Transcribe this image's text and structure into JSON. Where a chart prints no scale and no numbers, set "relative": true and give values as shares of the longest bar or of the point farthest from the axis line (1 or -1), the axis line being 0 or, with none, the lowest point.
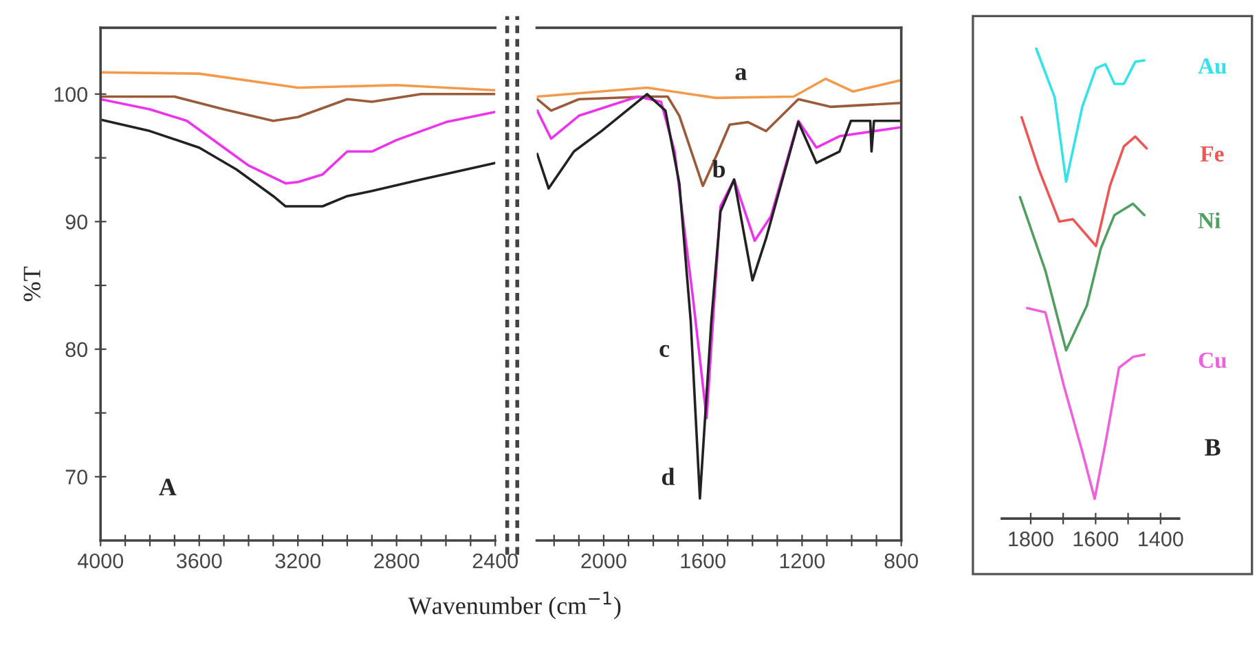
{
  "chart_data": [
    {
      "type": "line",
      "ylabel": "%T",
      "xlabel": "Wavenumber (cm$^{−1}$)",
      "xlim": [
        4000,
        2400
      ],
      "ylim": [
        65,
        105.2
      ],
      "xticks": [
        4000,
        {
          "value": 3900,
          "label": null
        },
        {
          "value": 3800,
          "label": null
        },
        {
          "value": 3700,
          "label": null
        },
        3600,
        {
          "value": 3500,
          "label": null
        },
        {
          "value": 3400,
          "label": null
        },
        {
          "value": 3300,
          "label": null
        },
        3200,
        {
          "value": 3100,
          "label": null
        },
        {
          "value": 3000,
          "label": null
        },
        {
          "value": 2900,
          "label": null
        },
        2800,
        {
          "value": 2700,
          "label": null
        },
        {
          "value": 2600,
          "label": null
        },
        {
          "value": 2500,
          "label": null
        },
        2400
      ],
      "yticks": [
        70,
        {
          "value": 75,
          "label": null
        },
        80,
        {
          "value": 85,
          "label": null
        },
        90,
        {
          "value": 95,
          "label": null
        },
        100
      ],
      "grid": false,
      "legend": false,
      "series": [
        {
          "color": "#f39a4c",
          "x": [
            4000,
            3600,
            3200,
            2800,
            2400
          ],
          "values": [
            101.7,
            101.6,
            100.5,
            100.7,
            100.3
          ]
        },
        {
          "color": "#9b5a3a",
          "x": [
            4000,
            3700,
            3500,
            3300,
            3200,
            3000,
            2900,
            2700,
            2400
          ],
          "values": [
            99.8,
            99.8,
            98.8,
            97.9,
            98.2,
            99.6,
            99.4,
            100,
            100
          ]
        },
        {
          "color": "#ee33ee",
          "x": [
            4000,
            3800,
            3650,
            3500,
            3400,
            3250,
            3200,
            3100,
            3000,
            2900,
            2800,
            2600,
            2400
          ],
          "values": [
            99.6,
            98.8,
            97.9,
            95.8,
            94.4,
            93.0,
            93.1,
            93.7,
            95.5,
            95.5,
            96.4,
            97.8,
            98.6
          ]
        },
        {
          "color": "#222222",
          "x": [
            4000,
            3800,
            3600,
            3450,
            3300,
            3250,
            3100,
            3000,
            2900,
            2700,
            2400
          ],
          "values": [
            98.0,
            97.1,
            95.8,
            94.1,
            92.0,
            91.2,
            91.2,
            92.0,
            92.4,
            93.3,
            94.6
          ]
        }
      ],
      "annotations": [
        "A"
      ]
    },
    {
      "type": "line",
      "xlim": [
        2270,
        800
      ],
      "ylim": [
        65,
        105.2
      ],
      "tick_labels": "x",
      "xticks": [
        {
          "value": 2200,
          "label": null
        },
        {
          "value": 2100,
          "label": null
        },
        2000,
        {
          "value": 1900,
          "label": null
        },
        {
          "value": 1800,
          "label": null
        },
        {
          "value": 1700,
          "label": null
        },
        1600,
        {
          "value": 1500,
          "label": null
        },
        {
          "value": 1400,
          "label": null
        },
        {
          "value": 1300,
          "label": null
        },
        1200,
        {
          "value": 1100,
          "label": null
        },
        {
          "value": 1000,
          "label": null
        },
        {
          "value": 900,
          "label": null
        },
        800
      ],
      "grid": false,
      "legend": false,
      "series": [
        {
          "color": "#f39a4c",
          "x": [
            2268,
            1825,
            1548,
            1234,
            1105,
            994,
            800
          ],
          "values": [
            99.8,
            100.5,
            99.7,
            99.8,
            101.2,
            100.2,
            101.1
          ]
        },
        {
          "color": "#9b5a3a",
          "x": [
            2268,
            2212,
            2100,
            1825,
            1742,
            1695,
            1600,
            1538,
            1492,
            1418,
            1345,
            1215,
            1086,
            800
          ],
          "values": [
            99.6,
            98.7,
            99.6,
            99.8,
            99.8,
            98.3,
            92.8,
            95.5,
            97.6,
            97.8,
            97.1,
            99.6,
            99.0,
            99.3
          ]
        },
        {
          "color": "#ee33ee",
          "x": [
            2268,
            2212,
            2100,
            1862,
            1769,
            1714,
            1640,
            1585,
            1529,
            1474,
            1391,
            1326,
            1215,
            1142,
            1049,
            800
          ],
          "values": [
            98.7,
            96.5,
            98.3,
            99.8,
            99.4,
            95.5,
            84.0,
            74.6,
            91.2,
            93.3,
            88.5,
            90.4,
            97.9,
            95.8,
            96.7,
            97.4
          ]
        },
        {
          "color": "#222222",
          "x": [
            2268,
            2222,
            2120,
            2009,
            1825,
            1751,
            1695,
            1649,
            1612,
            1566,
            1529,
            1474,
            1400,
            1345,
            1215,
            1142,
            1049,
            1003,
            925,
            920,
            910,
            800
          ],
          "values": [
            95.3,
            92.6,
            95.5,
            97.1,
            100,
            98.7,
            93.0,
            82.2,
            68.3,
            82.2,
            90.8,
            93.3,
            85.4,
            88.7,
            97.8,
            94.6,
            95.5,
            97.9,
            97.9,
            95.5,
            97.9,
            97.9
          ]
        }
      ],
      "annotations": [
        "a",
        "b",
        "c",
        "d"
      ]
    },
    {
      "type": "line",
      "relative": true,
      "xlim": [
        1889,
        1343
      ],
      "tick_labels": "x",
      "xticks": [
        1800,
        {
          "value": 1700,
          "label": null
        },
        1600,
        {
          "value": 1500,
          "label": null
        },
        1400
      ],
      "grid": false,
      "legend": false,
      "series": [
        {
          "name": "Au",
          "color": "#33e3ea",
          "x": [
            1783,
            1726,
            1691,
            1641,
            1599,
            1570,
            1542,
            1513,
            1478,
            1450
          ],
          "values": [
            1.0,
            0.896,
            0.717,
            0.877,
            0.958,
            0.967,
            0.925,
            0.925,
            0.972,
            0.975
          ]
        },
        {
          "name": "Fe",
          "color": "#ee5555",
          "x": [
            1828,
            1776,
            1712,
            1670,
            1599,
            1556,
            1513,
            1478,
            1443
          ],
          "values": [
            0.854,
            0.745,
            0.632,
            0.637,
            0.58,
            0.708,
            0.792,
            0.813,
            0.788
          ]
        },
        {
          "name": "Ni",
          "color": "#4fa060",
          "x": [
            1833,
            1755,
            1691,
            1627,
            1584,
            1542,
            1485,
            1450
          ],
          "values": [
            0.684,
            0.528,
            0.358,
            0.453,
            0.575,
            0.646,
            0.67,
            0.646
          ]
        },
        {
          "name": "Cu",
          "color": "#f060dd",
          "x": [
            1811,
            1755,
            1698,
            1641,
            1603,
            1570,
            1528,
            1485,
            1450
          ],
          "values": [
            0.448,
            0.439,
            0.283,
            0.142,
            0.042,
            0.16,
            0.321,
            0.344,
            0.349
          ]
        }
      ],
      "annotations": [
        "B"
      ]
    }
  ]
}
